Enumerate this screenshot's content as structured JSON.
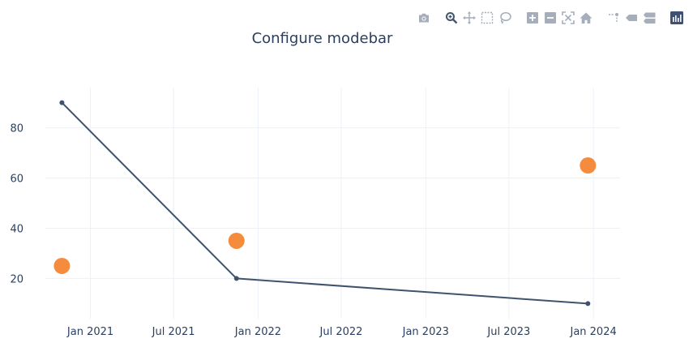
{
  "modebar": {
    "buttons": [
      {
        "icon": "camera-icon",
        "label": "Download plot as a png"
      },
      {
        "icon": "zoom-icon",
        "label": "Zoom",
        "active": true
      },
      {
        "icon": "pan-icon",
        "label": "Pan"
      },
      {
        "icon": "box-select-icon",
        "label": "Box Select"
      },
      {
        "icon": "lasso-select-icon",
        "label": "Lasso Select"
      },
      {
        "icon": "zoom-in-icon",
        "label": "Zoom in"
      },
      {
        "icon": "zoom-out-icon",
        "label": "Zoom out"
      },
      {
        "icon": "autoscale-icon",
        "label": "Autoscale"
      },
      {
        "icon": "home-icon",
        "label": "Reset axes"
      },
      {
        "icon": "spike-lines-icon",
        "label": "Toggle Spike Lines"
      },
      {
        "icon": "hover-closest-icon",
        "label": "Show closest data on hover"
      },
      {
        "icon": "hover-compare-icon",
        "label": "Compare data on hover"
      },
      {
        "icon": "plotly-logo-icon",
        "label": "Produced with Plotly"
      }
    ],
    "colors": {
      "icon": "#a6aebc",
      "active": "#44546a",
      "logo": "#3f4f75"
    }
  },
  "chart_data": {
    "type": "line",
    "title": "Configure modebar",
    "xlabel": "",
    "ylabel": "",
    "x_tick_labels": [
      "Jan 2021",
      "Jul 2021",
      "Jan 2022",
      "Jul 2022",
      "Jan 2023",
      "Jul 2023",
      "Jan 2024"
    ],
    "x_ticks": [
      "2021-01-01",
      "2021-07-01",
      "2022-01-01",
      "2022-07-01",
      "2023-01-01",
      "2023-07-01",
      "2024-01-01"
    ],
    "y_ticks": [
      20,
      40,
      60,
      80
    ],
    "xlim": [
      "2020-09-25",
      "2024-02-28"
    ],
    "ylim": [
      4,
      96
    ],
    "grid": true,
    "series": [
      {
        "mode": "lines+markers",
        "color": "#3f536e",
        "points": [
          {
            "x": "2020-10-31",
            "y": 90
          },
          {
            "x": "2021-11-15",
            "y": 20
          },
          {
            "x": "2023-12-20",
            "y": 10
          }
        ]
      },
      {
        "mode": "markers",
        "color": "#f58b3c",
        "points": [
          {
            "x": "2020-10-31",
            "y": 25
          },
          {
            "x": "2021-11-15",
            "y": 35
          },
          {
            "x": "2023-12-20",
            "y": 65
          }
        ]
      }
    ]
  }
}
